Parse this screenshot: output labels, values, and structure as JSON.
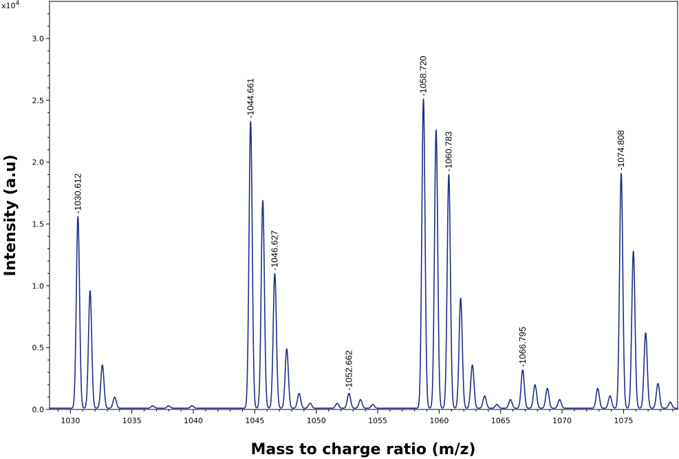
{
  "chart_data": {
    "type": "line",
    "xlabel": "Mass to charge ratio (m/z)",
    "ylabel": "Intensity (a.u)",
    "y_scale_label": "x10",
    "y_scale_exponent": "4",
    "xlim": [
      1028.3,
      1079.4
    ],
    "ylim": [
      0,
      3.3
    ],
    "x_ticks": [
      1030,
      1035,
      1040,
      1045,
      1050,
      1055,
      1060,
      1065,
      1070,
      1075
    ],
    "x_tick_labels": [
      "1030",
      "1035",
      "1040",
      "1045",
      "1050",
      "1055",
      "1060",
      "1065",
      "1070",
      "1075"
    ],
    "y_ticks": [
      0,
      0.5,
      1.0,
      1.5,
      2.0,
      2.5,
      3.0
    ],
    "y_tick_labels": [
      "0.0",
      "0.5",
      "1.0",
      "1.5",
      "2.0",
      "2.5",
      "3.0"
    ],
    "line_color": "#1f2a8a",
    "grid": false,
    "baseline": 0.01,
    "peaks": [
      {
        "x": 1030.612,
        "y": 1.55,
        "label": "1030.612"
      },
      {
        "x": 1031.6,
        "y": 0.95,
        "label": ""
      },
      {
        "x": 1032.6,
        "y": 0.35,
        "label": ""
      },
      {
        "x": 1033.6,
        "y": 0.09,
        "label": ""
      },
      {
        "x": 1036.7,
        "y": 0.02,
        "label": ""
      },
      {
        "x": 1038.0,
        "y": 0.02,
        "label": ""
      },
      {
        "x": 1039.9,
        "y": 0.02,
        "label": ""
      },
      {
        "x": 1044.661,
        "y": 2.32,
        "label": "1044.661"
      },
      {
        "x": 1045.65,
        "y": 1.68,
        "label": ""
      },
      {
        "x": 1046.627,
        "y": 1.09,
        "label": "1046.627"
      },
      {
        "x": 1047.6,
        "y": 0.48,
        "label": ""
      },
      {
        "x": 1048.6,
        "y": 0.12,
        "label": ""
      },
      {
        "x": 1049.5,
        "y": 0.04,
        "label": ""
      },
      {
        "x": 1051.7,
        "y": 0.04,
        "label": ""
      },
      {
        "x": 1052.662,
        "y": 0.12,
        "label": "1052.662"
      },
      {
        "x": 1053.6,
        "y": 0.07,
        "label": ""
      },
      {
        "x": 1054.6,
        "y": 0.03,
        "label": ""
      },
      {
        "x": 1058.72,
        "y": 2.5,
        "label": "1058.720"
      },
      {
        "x": 1059.75,
        "y": 2.25,
        "label": ""
      },
      {
        "x": 1060.783,
        "y": 1.89,
        "label": "1060.783"
      },
      {
        "x": 1061.75,
        "y": 0.89,
        "label": ""
      },
      {
        "x": 1062.7,
        "y": 0.35,
        "label": ""
      },
      {
        "x": 1063.7,
        "y": 0.1,
        "label": ""
      },
      {
        "x": 1064.7,
        "y": 0.03,
        "label": ""
      },
      {
        "x": 1065.8,
        "y": 0.07,
        "label": ""
      },
      {
        "x": 1066.795,
        "y": 0.31,
        "label": "1066.795"
      },
      {
        "x": 1067.8,
        "y": 0.19,
        "label": ""
      },
      {
        "x": 1068.8,
        "y": 0.16,
        "label": ""
      },
      {
        "x": 1069.8,
        "y": 0.07,
        "label": ""
      },
      {
        "x": 1072.9,
        "y": 0.16,
        "label": ""
      },
      {
        "x": 1073.9,
        "y": 0.1,
        "label": ""
      },
      {
        "x": 1074.808,
        "y": 1.9,
        "label": "1074.808"
      },
      {
        "x": 1075.8,
        "y": 1.27,
        "label": ""
      },
      {
        "x": 1076.8,
        "y": 0.61,
        "label": ""
      },
      {
        "x": 1077.8,
        "y": 0.2,
        "label": ""
      },
      {
        "x": 1078.8,
        "y": 0.05,
        "label": ""
      }
    ]
  }
}
